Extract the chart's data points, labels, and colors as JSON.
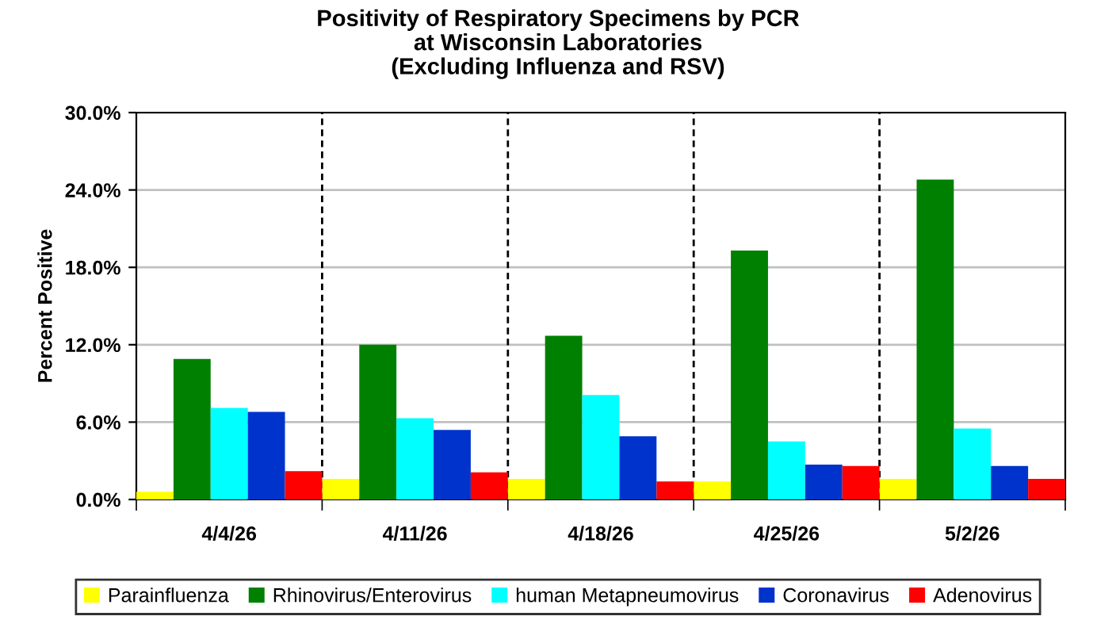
{
  "chart_data": {
    "type": "bar",
    "title": "Positivity of Respiratory Specimens by PCR\nat Wisconsin Laboratories\n(Excluding Influenza and RSV)",
    "ylabel": "Percent Positive",
    "categories": [
      "4/4/26",
      "4/11/26",
      "4/18/26",
      "4/25/26",
      "5/2/26"
    ],
    "series": [
      {
        "name": "Parainfluenza",
        "color": "#ffff00",
        "values": [
          0.6,
          1.6,
          1.6,
          1.4,
          1.6
        ]
      },
      {
        "name": "Rhinovirus/Enterovirus",
        "color": "#008000",
        "values": [
          10.9,
          12.0,
          12.7,
          19.3,
          24.8
        ]
      },
      {
        "name": "human Metapneumovirus",
        "color": "#00ffff",
        "values": [
          7.1,
          6.3,
          8.1,
          4.5,
          5.5
        ]
      },
      {
        "name": "Coronavirus",
        "color": "#0033cc",
        "values": [
          6.8,
          5.4,
          4.9,
          2.7,
          2.6
        ]
      },
      {
        "name": "Adenovirus",
        "color": "#ff0000",
        "values": [
          2.2,
          2.1,
          1.4,
          2.6,
          1.6
        ]
      }
    ],
    "ylim": [
      0,
      30
    ],
    "yticks": [
      {
        "value": 0,
        "label": "0.0%"
      },
      {
        "value": 6,
        "label": "6.0%"
      },
      {
        "value": 12,
        "label": "12.0%"
      },
      {
        "value": 18,
        "label": "18.0%"
      },
      {
        "value": 24,
        "label": "24.0%"
      },
      {
        "value": 30,
        "label": "30.0%"
      }
    ],
    "grid": true,
    "legend": "bottom"
  }
}
